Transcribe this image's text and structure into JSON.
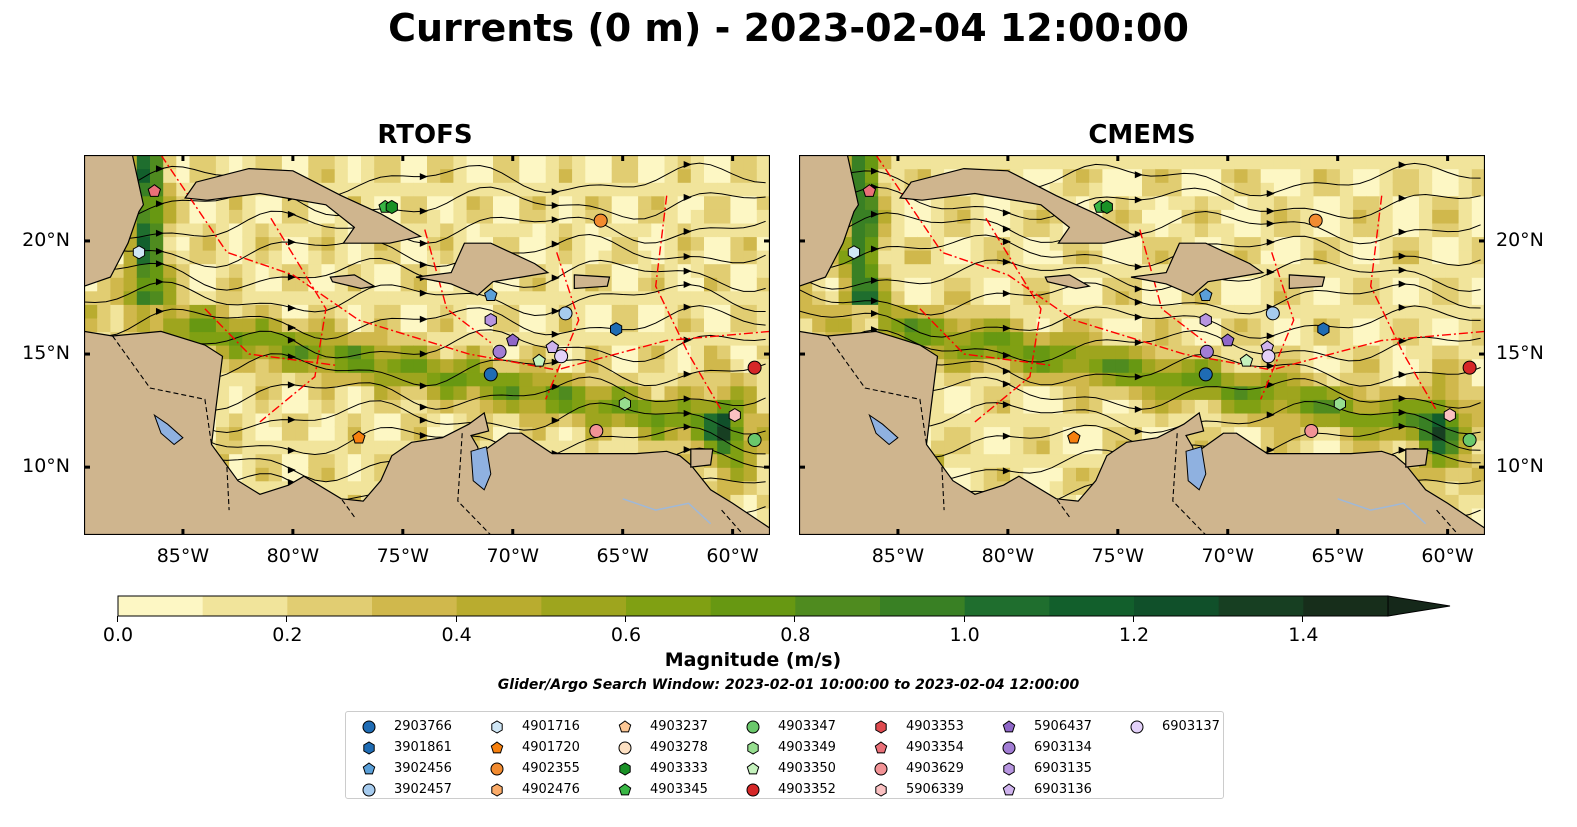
{
  "title": "Currents (0 m) - 2023-02-04 12:00:00",
  "panels": [
    {
      "title": "RTOFS"
    },
    {
      "title": "CMEMS"
    }
  ],
  "lon_ticks": [
    "85°W",
    "80°W",
    "75°W",
    "70°W",
    "65°W",
    "60°W"
  ],
  "lat_ticks": [
    "20°N",
    "15°N",
    "10°N"
  ],
  "extent": {
    "lon": [
      -89.5,
      -58.3
    ],
    "lat": [
      7.0,
      23.8
    ]
  },
  "colorbar": {
    "label": "Magnitude (m/s)",
    "ticks": [
      "0.0",
      "0.2",
      "0.4",
      "0.6",
      "0.8",
      "1.0",
      "1.2",
      "1.4"
    ],
    "range": [
      0.0,
      1.5
    ],
    "extend": "max",
    "colors": [
      "#fdf7c4",
      "#f1e49b",
      "#e1cd72",
      "#d0b84c",
      "#b9ac2f",
      "#9ea51e",
      "#80a013",
      "#679812",
      "#4f8b1f",
      "#398024",
      "#1f6e2e",
      "#125f2c",
      "#10502a",
      "#173f22",
      "#172e1b",
      "#15281a"
    ]
  },
  "search_window": "Glider/Argo Search Window: 2023-02-01 10:00:00 to 2023-02-04 12:00:00",
  "land_color": "#cfb58e",
  "lake_color": "#8fb1e0",
  "streamline_color": "#000000",
  "eez_color": "#ff0000",
  "legend": [
    {
      "id": "2903766",
      "marker": "circle",
      "color": "#1f6cb4"
    },
    {
      "id": "3901861",
      "marker": "hexagon",
      "color": "#1f6cb4"
    },
    {
      "id": "3902456",
      "marker": "pentagon",
      "color": "#5a9fd8"
    },
    {
      "id": "3902457",
      "marker": "circle",
      "color": "#a6cbee"
    },
    {
      "id": "4901716",
      "marker": "hexagon",
      "color": "#cfe6f5"
    },
    {
      "id": "4901720",
      "marker": "pentagon",
      "color": "#f7800e"
    },
    {
      "id": "4902355",
      "marker": "circle",
      "color": "#f28b30"
    },
    {
      "id": "4902476",
      "marker": "hexagon",
      "color": "#fbab68"
    },
    {
      "id": "4903237",
      "marker": "pentagon",
      "color": "#fcc795"
    },
    {
      "id": "4903278",
      "marker": "circle",
      "color": "#fde0c2"
    },
    {
      "id": "4903333",
      "marker": "hexagon",
      "color": "#1a9126"
    },
    {
      "id": "4903345",
      "marker": "pentagon",
      "color": "#38b644"
    },
    {
      "id": "4903347",
      "marker": "circle",
      "color": "#6ac86b"
    },
    {
      "id": "4903349",
      "marker": "hexagon",
      "color": "#96de8f"
    },
    {
      "id": "4903350",
      "marker": "pentagon",
      "color": "#c5f2bd"
    },
    {
      "id": "4903352",
      "marker": "circle",
      "color": "#d62728"
    },
    {
      "id": "4903353",
      "marker": "hexagon",
      "color": "#df4a4f"
    },
    {
      "id": "4903354",
      "marker": "pentagon",
      "color": "#ea7078"
    },
    {
      "id": "4903629",
      "marker": "circle",
      "color": "#f29396"
    },
    {
      "id": "5906339",
      "marker": "hexagon",
      "color": "#fbc1c2"
    },
    {
      "id": "5906437",
      "marker": "pentagon",
      "color": "#8f67c8"
    },
    {
      "id": "6903134",
      "marker": "circle",
      "color": "#a27dd4"
    },
    {
      "id": "6903135",
      "marker": "hexagon",
      "color": "#b795e0"
    },
    {
      "id": "6903136",
      "marker": "pentagon",
      "color": "#cfb3ee"
    },
    {
      "id": "6903137",
      "marker": "circle",
      "color": "#e3d1f9"
    }
  ],
  "floats": [
    {
      "id": "2903766",
      "lon": -71.0,
      "lat": 14.1
    },
    {
      "id": "3901861",
      "lon": -65.3,
      "lat": 16.1
    },
    {
      "id": "3902456",
      "lon": -71.0,
      "lat": 17.6
    },
    {
      "id": "3902457",
      "lon": -67.6,
      "lat": 16.8
    },
    {
      "id": "4901716",
      "lon": -87.0,
      "lat": 19.5
    },
    {
      "id": "4901720",
      "lon": -77.0,
      "lat": 11.3
    },
    {
      "id": "4902355",
      "lon": -66.0,
      "lat": 20.9
    },
    {
      "id": "4903345",
      "lon": -75.8,
      "lat": 21.5
    },
    {
      "id": "4903347",
      "lon": -59.0,
      "lat": 11.2
    },
    {
      "id": "4903350",
      "lon": -68.8,
      "lat": 14.7
    },
    {
      "id": "4903349",
      "lon": -64.9,
      "lat": 12.8
    },
    {
      "id": "4903352",
      "lon": -59.0,
      "lat": 14.4
    },
    {
      "id": "4903354",
      "lon": -86.3,
      "lat": 22.2
    },
    {
      "id": "4903629",
      "lon": -66.2,
      "lat": 11.6
    },
    {
      "id": "5906339",
      "lon": -59.9,
      "lat": 12.3
    },
    {
      "id": "5906437",
      "lon": -70.0,
      "lat": 15.6
    },
    {
      "id": "6903134",
      "lon": -70.6,
      "lat": 15.1
    },
    {
      "id": "6903135",
      "lon": -71.0,
      "lat": 16.5
    },
    {
      "id": "6903136",
      "lon": -68.2,
      "lat": 15.3
    },
    {
      "id": "6903137",
      "lon": -67.8,
      "lat": 14.9
    },
    {
      "id": "4903333",
      "lon": -75.5,
      "lat": 21.5
    }
  ]
}
